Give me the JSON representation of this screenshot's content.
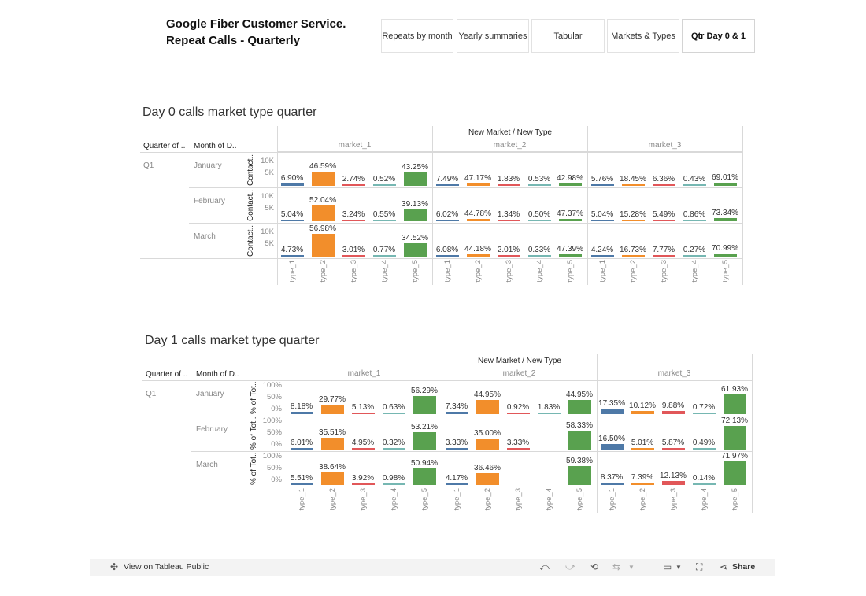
{
  "title": {
    "line1": "Google Fiber Customer Service.",
    "line2": "Repeat Calls - Quarterly"
  },
  "tabs": [
    {
      "label": "Repeats by month",
      "active": false
    },
    {
      "label": "Yearly summaries",
      "active": false
    },
    {
      "label": "Tabular",
      "active": false
    },
    {
      "label": "Markets & Types",
      "active": false
    },
    {
      "label": "Qtr Day 0 & 1",
      "active": true
    }
  ],
  "colors": {
    "type_1": "#4e79a7",
    "type_2": "#f28e2b",
    "type_3": "#e15759",
    "type_4": "#76b7b2",
    "type_5": "#59a14f"
  },
  "icons": {
    "view_on_tableau": "share-nodes-icon",
    "undo": "undo-icon",
    "redo": "redo-icon",
    "revert": "revert-icon",
    "refresh": "refresh-icon",
    "download": "download-icon",
    "fullscreen": "fullscreen-icon",
    "share": "share-icon"
  },
  "footer": {
    "view_label": "View on Tableau Public",
    "share_label": "Share"
  },
  "sheets": [
    {
      "title": "Day 0 calls market type quarter",
      "col_header": "New Market / New Type",
      "row_header_1": "Quarter of ..",
      "row_header_2": "Month of D..",
      "axis_title": "Contact..",
      "axis_ticks": [
        "10K",
        "5K"
      ],
      "quarter": "Q1"
    },
    {
      "title": "Day 1 calls market type quarter",
      "col_header": "New Market / New Type",
      "row_header_1": "Quarter of ..",
      "row_header_2": "Month of D..",
      "axis_title": "% of Tot..",
      "axis_ticks": [
        "100%",
        "50%",
        "0%"
      ],
      "quarter": "Q1"
    }
  ],
  "chart_data": [
    {
      "type": "bar",
      "title": "Day 0 calls market type quarter",
      "column_header": "New Market / New Type",
      "markets": [
        "market_1",
        "market_2",
        "market_3"
      ],
      "categories": [
        "type_1",
        "type_2",
        "type_3",
        "type_4",
        "type_5"
      ],
      "rows": [
        {
          "quarter": "Q1",
          "month": "January",
          "values": [
            [
              6.9,
              46.59,
              2.74,
              0.52,
              43.25
            ],
            [
              7.49,
              47.17,
              1.83,
              0.53,
              42.98
            ],
            [
              5.76,
              18.45,
              6.36,
              0.43,
              69.01
            ]
          ],
          "labels": [
            [
              "6.90%",
              "46.59%",
              "2.74%",
              "0.52%",
              "43.25%"
            ],
            [
              "7.49%",
              "47.17%",
              "1.83%",
              "0.53%",
              "42.98%"
            ],
            [
              "5.76%",
              "18.45%",
              "6.36%",
              "0.43%",
              "69.01%"
            ]
          ],
          "bar_heights_k": [
            [
              0.9,
              6.1,
              0.35,
              0.07,
              5.7
            ],
            [
              0.15,
              0.95,
              0.04,
              0.01,
              0.85
            ],
            [
              0.12,
              0.38,
              0.13,
              0.01,
              1.45
            ]
          ]
        },
        {
          "quarter": "Q1",
          "month": "February",
          "values": [
            [
              5.04,
              52.04,
              3.24,
              0.55,
              39.13
            ],
            [
              6.02,
              44.78,
              1.34,
              0.5,
              47.37
            ],
            [
              5.04,
              15.28,
              5.49,
              0.86,
              73.34
            ]
          ],
          "labels": [
            [
              "5.04%",
              "52.04%",
              "3.24%",
              "0.55%",
              "39.13%"
            ],
            [
              "6.02%",
              "44.78%",
              "1.34%",
              "0.50%",
              "47.37%"
            ],
            [
              "5.04%",
              "15.28%",
              "5.49%",
              "0.86%",
              "73.34%"
            ]
          ],
          "bar_heights_k": [
            [
              0.65,
              6.8,
              0.42,
              0.07,
              5.1
            ],
            [
              0.12,
              0.9,
              0.03,
              0.01,
              0.95
            ],
            [
              0.1,
              0.3,
              0.11,
              0.02,
              1.45
            ]
          ]
        },
        {
          "quarter": "Q1",
          "month": "March",
          "values": [
            [
              4.73,
              56.98,
              3.01,
              0.77,
              34.52
            ],
            [
              6.08,
              44.18,
              2.01,
              0.33,
              47.39
            ],
            [
              4.24,
              16.73,
              7.77,
              0.27,
              70.99
            ]
          ],
          "labels": [
            [
              "4.73%",
              "56.98%",
              "3.01%",
              "0.77%",
              "34.52%"
            ],
            [
              "6.08%",
              "44.18%",
              "2.01%",
              "0.33%",
              "47.39%"
            ],
            [
              "4.24%",
              "16.73%",
              "7.77%",
              "0.27%",
              "70.99%"
            ]
          ],
          "bar_heights_k": [
            [
              0.65,
              9.6,
              0.42,
              0.1,
              5.8
            ],
            [
              0.12,
              0.88,
              0.04,
              0.01,
              0.95
            ],
            [
              0.09,
              0.34,
              0.16,
              0.01,
              1.42
            ]
          ]
        }
      ],
      "ylabel": "Contact..",
      "yticks": [
        "10K",
        "5K"
      ],
      "ylim": [
        0,
        10000
      ]
    },
    {
      "type": "bar",
      "title": "Day 1 calls market type quarter",
      "column_header": "New Market / New Type",
      "markets": [
        "market_1",
        "market_2",
        "market_3"
      ],
      "categories": [
        "type_1",
        "type_2",
        "type_3",
        "type_4",
        "type_5"
      ],
      "rows": [
        {
          "quarter": "Q1",
          "month": "January",
          "values": [
            [
              8.18,
              29.77,
              5.13,
              0.63,
              56.29
            ],
            [
              7.34,
              44.95,
              0.92,
              1.83,
              44.95
            ],
            [
              17.35,
              10.12,
              9.88,
              0.72,
              61.93
            ]
          ],
          "labels": [
            [
              "8.18%",
              "29.77%",
              "5.13%",
              "0.63%",
              "56.29%"
            ],
            [
              "7.34%",
              "44.95%",
              "0.92%",
              "1.83%",
              "44.95%"
            ],
            [
              "17.35%",
              "10.12%",
              "9.88%",
              "0.72%",
              "61.93%"
            ]
          ]
        },
        {
          "quarter": "Q1",
          "month": "February",
          "values": [
            [
              6.01,
              35.51,
              4.95,
              0.32,
              53.21
            ],
            [
              3.33,
              35.0,
              3.33,
              null,
              58.33
            ],
            [
              16.5,
              5.01,
              5.87,
              0.49,
              72.13
            ]
          ],
          "labels": [
            [
              "6.01%",
              "35.51%",
              "4.95%",
              "0.32%",
              "53.21%"
            ],
            [
              "3.33%",
              "35.00%",
              "3.33%",
              "",
              "58.33%"
            ],
            [
              "16.50%",
              "5.01%",
              "5.87%",
              "0.49%",
              "72.13%"
            ]
          ]
        },
        {
          "quarter": "Q1",
          "month": "March",
          "values": [
            [
              5.51,
              38.64,
              3.92,
              0.98,
              50.94
            ],
            [
              4.17,
              36.46,
              null,
              null,
              59.38
            ],
            [
              8.37,
              7.39,
              12.13,
              0.14,
              71.97
            ]
          ],
          "labels": [
            [
              "5.51%",
              "38.64%",
              "3.92%",
              "0.98%",
              "50.94%"
            ],
            [
              "4.17%",
              "36.46%",
              "",
              "",
              "59.38%"
            ],
            [
              "8.37%",
              "7.39%",
              "12.13%",
              "0.14%",
              "71.97%"
            ]
          ]
        }
      ],
      "ylabel": "% of Tot..",
      "yticks": [
        "100%",
        "50%",
        "0%"
      ],
      "ylim": [
        0,
        100
      ]
    }
  ]
}
